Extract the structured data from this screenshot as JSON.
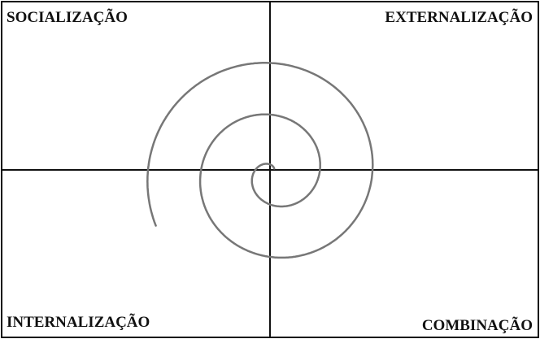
{
  "quadrants": {
    "top_left": "SOCIALIZAÇÃO",
    "top_right": "EXTERNALIZAÇÃO",
    "bottom_left": "INTERNALIZAÇÃO",
    "bottom_right": "COMBINAÇÃO"
  },
  "colors": {
    "frame": "#111111",
    "spiral": "#777777",
    "text": "#111111"
  }
}
